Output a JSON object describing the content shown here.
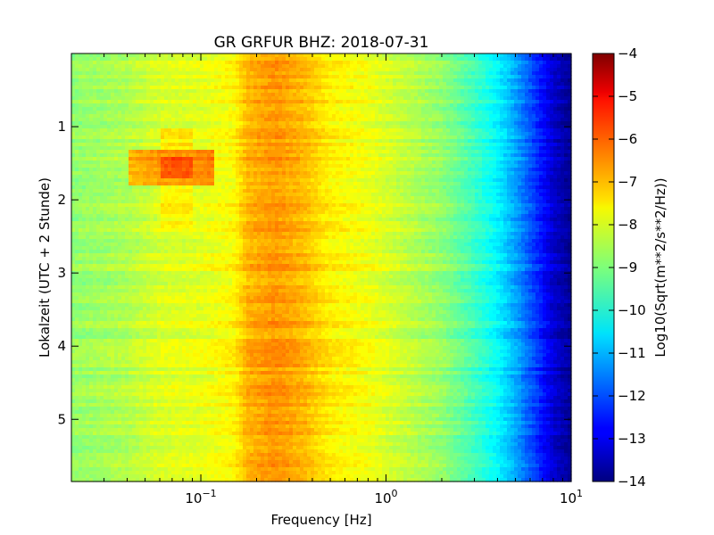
{
  "chart_data": {
    "type": "heatmap",
    "title": "GR GRFUR BHZ: 2018-07-31",
    "xlabel": "Frequency [Hz]",
    "ylabel": "Lokalzeit (UTC + 2 Stunde)",
    "x_scale": "log",
    "xlim": [
      0.02,
      10
    ],
    "ylim": [
      0,
      5.85
    ],
    "y_inverted": true,
    "x_ticks": [
      {
        "value": 0.1,
        "base": "10",
        "exp": "−1"
      },
      {
        "value": 1,
        "base": "10",
        "exp": "0"
      },
      {
        "value": 10,
        "base": "10",
        "exp": "1"
      }
    ],
    "y_ticks": [
      {
        "value": 1,
        "label": "1"
      },
      {
        "value": 2,
        "label": "2"
      },
      {
        "value": 3,
        "label": "3"
      },
      {
        "value": 4,
        "label": "4"
      },
      {
        "value": 5,
        "label": "5"
      }
    ],
    "colorbar": {
      "label": "Log10(Sqrt(m**2/s**2/Hz))",
      "colormap": "jet",
      "range": [
        -14,
        -4
      ],
      "ticks": [
        {
          "value": -4,
          "label": "−4"
        },
        {
          "value": -5,
          "label": "−5"
        },
        {
          "value": -6,
          "label": "−6"
        },
        {
          "value": -7,
          "label": "−7"
        },
        {
          "value": -8,
          "label": "−8"
        },
        {
          "value": -9,
          "label": "−9"
        },
        {
          "value": -10,
          "label": "−10"
        },
        {
          "value": -11,
          "label": "−11"
        },
        {
          "value": -12,
          "label": "−12"
        },
        {
          "value": -13,
          "label": "−13"
        },
        {
          "value": -14,
          "label": "−14"
        }
      ]
    },
    "frequency_profile": [
      {
        "f": 0.02,
        "v": -8.8
      },
      {
        "f": 0.04,
        "v": -8.5
      },
      {
        "f": 0.06,
        "v": -8.1
      },
      {
        "f": 0.1,
        "v": -8.0
      },
      {
        "f": 0.15,
        "v": -7.7
      },
      {
        "f": 0.18,
        "v": -7.0
      },
      {
        "f": 0.25,
        "v": -6.7
      },
      {
        "f": 0.35,
        "v": -7.0
      },
      {
        "f": 0.5,
        "v": -7.6
      },
      {
        "f": 0.8,
        "v": -7.9
      },
      {
        "f": 1.0,
        "v": -8.1
      },
      {
        "f": 2.0,
        "v": -8.8
      },
      {
        "f": 3.0,
        "v": -9.6
      },
      {
        "f": 4.0,
        "v": -10.3
      },
      {
        "f": 5.0,
        "v": -11.1
      },
      {
        "f": 6.0,
        "v": -11.9
      },
      {
        "f": 7.0,
        "v": -12.6
      },
      {
        "f": 8.0,
        "v": -13.2
      },
      {
        "f": 10.0,
        "v": -13.8
      }
    ],
    "events": [
      {
        "t0": 1.3,
        "t1": 1.8,
        "f0": 0.04,
        "f1": 0.12,
        "dv": 1.4
      },
      {
        "t0": 1.4,
        "t1": 1.7,
        "f0": 0.06,
        "f1": 0.09,
        "dv": 0.6
      },
      {
        "t0": 1.0,
        "t1": 1.3,
        "f0": 0.06,
        "f1": 0.09,
        "dv": 0.5
      },
      {
        "t0": 1.8,
        "t1": 2.4,
        "f0": 0.06,
        "f1": 0.09,
        "dv": 0.4
      }
    ]
  }
}
